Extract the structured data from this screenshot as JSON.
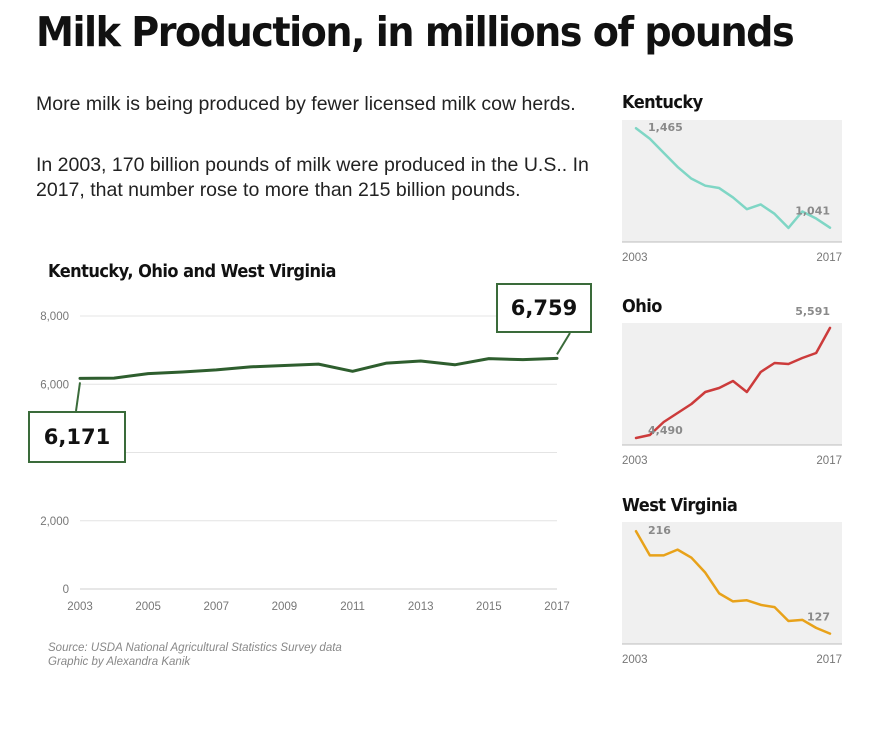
{
  "title": "Milk Production, in millions of pounds",
  "intro": [
    "More milk is being produced by fewer licensed milk cow herds.",
    "In 2003, 170 billion pounds of milk were produced in the U.S.. In 2017, that number rose to more than 215 billion pounds."
  ],
  "source": {
    "line1": "Source: USDA National Agricultural Statistics Survey data",
    "line2": "Graphic by Alexandra Kanik"
  },
  "colors": {
    "main": "#2e5e2e",
    "kentucky": "#7fd6c5",
    "ohio": "#cc3b3b",
    "west_virginia": "#e8a21a",
    "panel_bg": "#f0f0f0"
  },
  "chart_data": [
    {
      "type": "line",
      "title": "Kentucky, Ohio and West Virginia",
      "x": [
        2003,
        2004,
        2005,
        2006,
        2007,
        2008,
        2009,
        2010,
        2011,
        2012,
        2013,
        2014,
        2015,
        2016,
        2017
      ],
      "series": [
        {
          "values": [
            6171,
            6180,
            6310,
            6360,
            6420,
            6510,
            6550,
            6590,
            6380,
            6620,
            6680,
            6570,
            6750,
            6720,
            6759
          ]
        }
      ],
      "ylim": [
        0,
        8000
      ],
      "yticks": [
        {
          "value": 0,
          "label": "0"
        },
        {
          "value": 2000,
          "label": "2,000"
        },
        {
          "value": 6000,
          "label": "6,000"
        },
        {
          "value": 8000,
          "label": "8,000"
        }
      ],
      "xticks": [
        "2003",
        "2005",
        "2007",
        "2009",
        "2011",
        "2013",
        "2015",
        "2017"
      ],
      "callouts": {
        "start": "6,171",
        "end": "6,759"
      },
      "grid": true
    },
    {
      "type": "line",
      "title": "Kentucky",
      "x": [
        2003,
        2004,
        2005,
        2006,
        2007,
        2008,
        2009,
        2010,
        2011,
        2012,
        2013,
        2014,
        2015,
        2016,
        2017
      ],
      "series": [
        {
          "values": [
            1465,
            1420,
            1360,
            1300,
            1250,
            1220,
            1210,
            1170,
            1120,
            1140,
            1100,
            1040,
            1110,
            1080,
            1041
          ]
        }
      ],
      "ylim": [
        980,
        1500
      ],
      "start_label": "1,465",
      "end_label": "1,041",
      "xticks": [
        "2003",
        "2017"
      ]
    },
    {
      "type": "line",
      "title": "Ohio",
      "x": [
        2003,
        2004,
        2005,
        2006,
        2007,
        2008,
        2009,
        2010,
        2011,
        2012,
        2013,
        2014,
        2015,
        2016,
        2017
      ],
      "series": [
        {
          "values": [
            4490,
            4520,
            4650,
            4740,
            4830,
            4950,
            4990,
            5060,
            4950,
            5150,
            5240,
            5230,
            5290,
            5340,
            5591
          ]
        }
      ],
      "ylim": [
        4420,
        5640
      ],
      "start_label": "4,490",
      "end_label": "5,591",
      "xticks": [
        "2003",
        "2017"
      ]
    },
    {
      "type": "line",
      "title": "West Virginia",
      "x": [
        2003,
        2004,
        2005,
        2006,
        2007,
        2008,
        2009,
        2010,
        2011,
        2012,
        2013,
        2014,
        2015,
        2016,
        2017
      ],
      "series": [
        {
          "values": [
            216,
            195,
            195,
            200,
            193,
            180,
            162,
            155,
            156,
            152,
            150,
            138,
            139,
            132,
            127
          ]
        }
      ],
      "ylim": [
        118,
        224
      ],
      "start_label": "216",
      "end_label": "127",
      "xticks": [
        "2003",
        "2017"
      ]
    }
  ]
}
